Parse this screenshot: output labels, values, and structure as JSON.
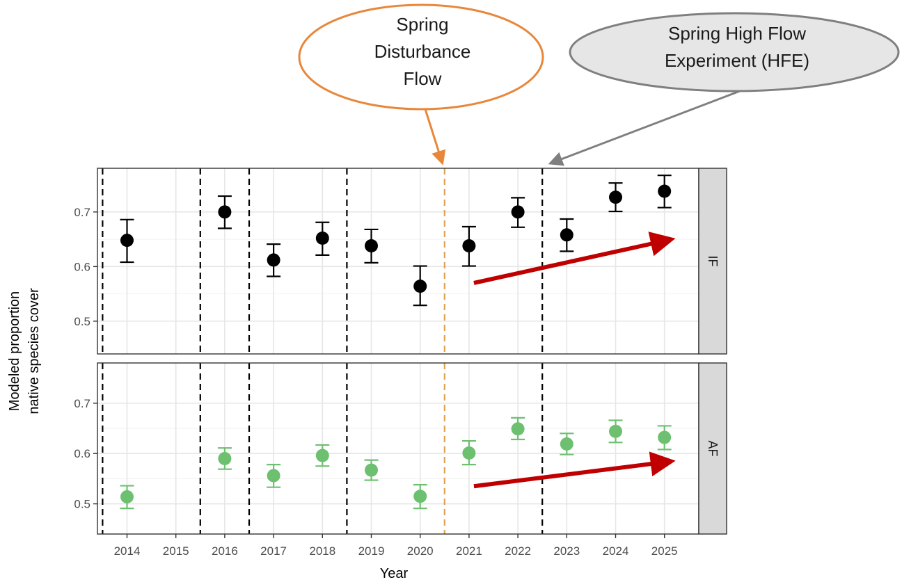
{
  "chart_data": {
    "type": "scatter",
    "xlabel": "Year",
    "ylabel_lines": [
      "Modeled  proportion",
      "native species cover"
    ],
    "x_categories": [
      "2014",
      "2015",
      "2016",
      "2017",
      "2018",
      "2019",
      "2020",
      "2021",
      "2022",
      "2023",
      "2024",
      "2025"
    ],
    "ylim": [
      0.44,
      0.78
    ],
    "y_ticks": [
      0.5,
      0.6,
      0.7
    ],
    "y_tick_labels": [
      "0.5",
      "0.6",
      "0.7"
    ],
    "grid": true,
    "facets": [
      {
        "label": "IF",
        "color": "#000000",
        "points": [
          {
            "x": "2014",
            "y": 0.648,
            "lo": 0.608,
            "hi": 0.686
          },
          {
            "x": "2016",
            "y": 0.7,
            "lo": 0.67,
            "hi": 0.729
          },
          {
            "x": "2017",
            "y": 0.612,
            "lo": 0.582,
            "hi": 0.641
          },
          {
            "x": "2018",
            "y": 0.652,
            "lo": 0.621,
            "hi": 0.681
          },
          {
            "x": "2019",
            "y": 0.638,
            "lo": 0.607,
            "hi": 0.668
          },
          {
            "x": "2020",
            "y": 0.564,
            "lo": 0.529,
            "hi": 0.601
          },
          {
            "x": "2021",
            "y": 0.638,
            "lo": 0.601,
            "hi": 0.673
          },
          {
            "x": "2022",
            "y": 0.7,
            "lo": 0.672,
            "hi": 0.726
          },
          {
            "x": "2023",
            "y": 0.658,
            "lo": 0.628,
            "hi": 0.687
          },
          {
            "x": "2024",
            "y": 0.727,
            "lo": 0.701,
            "hi": 0.753
          },
          {
            "x": "2025",
            "y": 0.738,
            "lo": 0.708,
            "hi": 0.767
          }
        ]
      },
      {
        "label": "AF",
        "color": "#6cc070",
        "points": [
          {
            "x": "2014",
            "y": 0.514,
            "lo": 0.491,
            "hi": 0.536
          },
          {
            "x": "2016",
            "y": 0.59,
            "lo": 0.569,
            "hi": 0.611
          },
          {
            "x": "2017",
            "y": 0.556,
            "lo": 0.533,
            "hi": 0.578
          },
          {
            "x": "2018",
            "y": 0.596,
            "lo": 0.575,
            "hi": 0.617
          },
          {
            "x": "2019",
            "y": 0.567,
            "lo": 0.547,
            "hi": 0.587
          },
          {
            "x": "2020",
            "y": 0.515,
            "lo": 0.491,
            "hi": 0.538
          },
          {
            "x": "2021",
            "y": 0.601,
            "lo": 0.578,
            "hi": 0.625
          },
          {
            "x": "2022",
            "y": 0.649,
            "lo": 0.628,
            "hi": 0.671
          },
          {
            "x": "2023",
            "y": 0.619,
            "lo": 0.598,
            "hi": 0.64
          },
          {
            "x": "2024",
            "y": 0.644,
            "lo": 0.622,
            "hi": 0.666
          },
          {
            "x": "2025",
            "y": 0.632,
            "lo": 0.608,
            "hi": 0.655
          }
        ]
      }
    ],
    "reference_lines": [
      {
        "x": 2013.5,
        "style": "dashed",
        "color": "#000000"
      },
      {
        "x": 2015.5,
        "style": "dashed",
        "color": "#000000"
      },
      {
        "x": 2016.5,
        "style": "dashed",
        "color": "#000000"
      },
      {
        "x": 2018.5,
        "style": "dashed",
        "color": "#000000"
      },
      {
        "x": 2020.5,
        "style": "dashed",
        "color": "#e0a050"
      },
      {
        "x": 2022.5,
        "style": "dashed",
        "color": "#000000"
      }
    ],
    "trend_arrows": [
      {
        "facet": "IF",
        "x0": 2021.1,
        "y0": 0.57,
        "x1": 2025.1,
        "y1": 0.649,
        "color": "#c00000"
      },
      {
        "facet": "AF",
        "x0": 2021.1,
        "y0": 0.535,
        "x1": 2025.1,
        "y1": 0.584,
        "color": "#c00000"
      }
    ],
    "annotations": [
      {
        "name": "spring-disturbance-flow",
        "lines": [
          "Spring",
          "Disturbance",
          "Flow"
        ],
        "fill": "#ffffff",
        "stroke": "#e8873a",
        "points_to_x": 2020.5
      },
      {
        "name": "spring-hfe",
        "lines": [
          "Spring High Flow",
          "Experiment (HFE)"
        ],
        "fill": "#e6e6e6",
        "stroke": "#7f7f7f",
        "points_to_x": 2022.5
      }
    ]
  }
}
